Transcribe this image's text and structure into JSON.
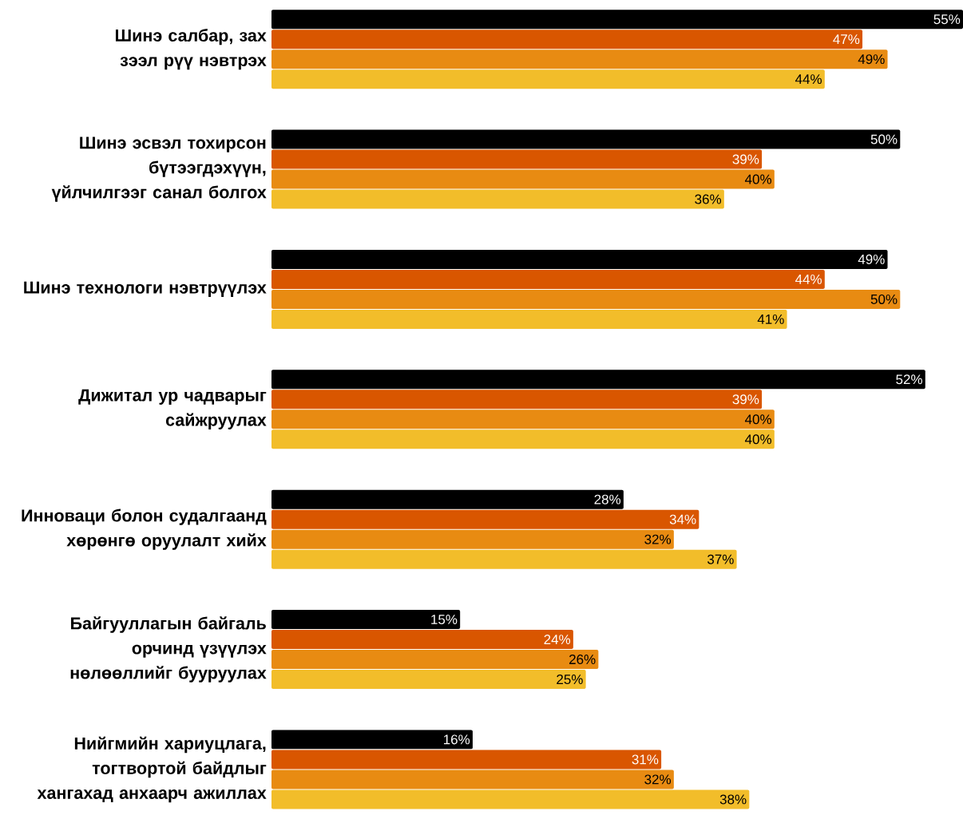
{
  "chart_data": {
    "type": "bar",
    "orientation": "horizontal",
    "categories": [
      "Шинэ салбар, зах зээл рүү нэвтрэх",
      "Шинэ эсвэл тохирсон бүтээгдэхүүн, үйлчилгээг санал болгох",
      "Шинэ технологи нэвтрүүлэх",
      "Дижитал ур чадварыг сайжруулах",
      "Инноваци болон судалгаанд хөрөнгө оруулалт хийх",
      "Байгууллагын байгаль орчинд үзүүлэх нөлөөллийг бууруулах",
      "Нийгмийн хариуцлага, тогтвортой байдлыг хангахад анхаарч ажиллах"
    ],
    "series": [
      {
        "color": "#000000",
        "values": [
          55,
          50,
          49,
          52,
          28,
          15,
          16
        ],
        "value_labels": [
          "55%",
          "50%",
          "49%",
          "52%",
          "28%",
          "15%",
          "16%"
        ]
      },
      {
        "color": "#d95600",
        "values": [
          47,
          39,
          44,
          39,
          34,
          24,
          31
        ],
        "value_labels": [
          "47%",
          "39%",
          "44%",
          "39%",
          "34%",
          "24%",
          "31%"
        ]
      },
      {
        "color": "#e88b12",
        "values": [
          49,
          40,
          50,
          40,
          32,
          26,
          32
        ],
        "value_labels": [
          "49%",
          "40%",
          "50%",
          "40%",
          "32%",
          "26%",
          "32%"
        ]
      },
      {
        "color": "#f2bd2a",
        "values": [
          44,
          36,
          41,
          40,
          37,
          25,
          38
        ],
        "value_labels": [
          "44%",
          "36%",
          "41%",
          "40%",
          "37%",
          "25%",
          "38%"
        ]
      }
    ]
  }
}
